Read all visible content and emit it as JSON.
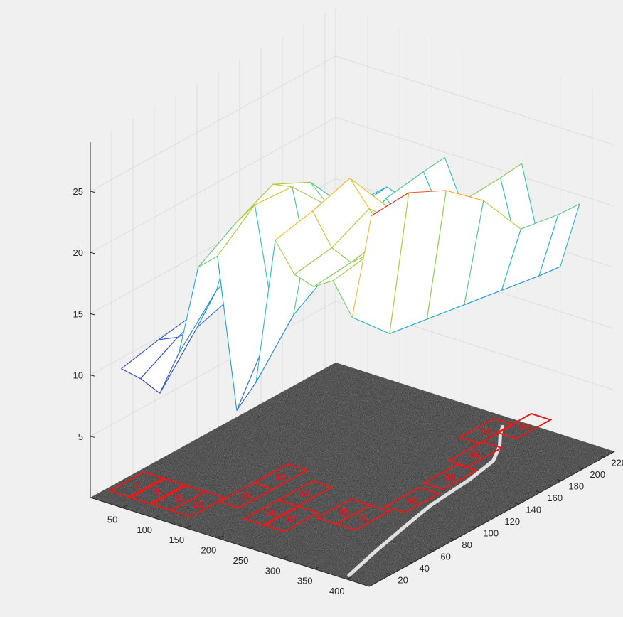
{
  "chart_data": {
    "type": "surface3d",
    "view": "3-D wireframe mesh over a grayscale texture image",
    "grid": true,
    "colormap": "parula",
    "colors": {
      "axis": "#262626",
      "grid": "#dcdcdc",
      "box": "#e81a1a",
      "background": "#f0f0f0"
    },
    "z_ticks": [
      "5",
      "10",
      "15",
      "20",
      "25"
    ],
    "x_ticks": [
      "50",
      "100",
      "150",
      "200",
      "250",
      "300",
      "350",
      "400"
    ],
    "y_ticks": [
      "20",
      "40",
      "60",
      "80",
      "100",
      "120",
      "140",
      "160",
      "180",
      "200",
      "220"
    ],
    "xlim": [
      0,
      435
    ],
    "ylim": [
      0,
      230
    ],
    "zlim": [
      0,
      29
    ],
    "mesh_x": [
      15,
      45,
      75,
      105,
      135,
      165,
      195,
      225,
      255,
      285,
      315,
      345,
      375,
      405
    ],
    "mesh_y": [
      20,
      55,
      90,
      125,
      160,
      195,
      215
    ],
    "mesh_z": [
      [
        9.8,
        9.5,
        8.8,
        12.6,
        20.1,
        21.5,
        9.4,
        12.2,
        24.3,
        22.0,
        21.5,
        22.5,
        20.0,
        28.8
      ],
      [
        10.5,
        11.2,
        12.5,
        16.0,
        22.0,
        24.0,
        15.0,
        16.0,
        25.0,
        22.5,
        21.8,
        23.0,
        17.0,
        29.0
      ],
      [
        11.0,
        12.4,
        13.5,
        17.5,
        23.5,
        23.8,
        16.8,
        18.0,
        26.0,
        24.0,
        22.4,
        23.8,
        16.5,
        27.5
      ],
      [
        11.8,
        13.0,
        14.0,
        19.0,
        22.0,
        20.5,
        17.5,
        19.0,
        22.0,
        21.0,
        21.5,
        21.0,
        16.0,
        25.0
      ],
      [
        12.2,
        12.5,
        15.0,
        17.0,
        18.2,
        17.6,
        20.0,
        18.5,
        18.0,
        17.6,
        21.8,
        17.5,
        15.5,
        21.0
      ],
      [
        12.4,
        14.0,
        15.2,
        16.6,
        16.4,
        16.0,
        20.5,
        17.2,
        16.0,
        16.3,
        22.0,
        16.0,
        15.0,
        20.5
      ],
      [
        12.6,
        14.3,
        15.5,
        16.8,
        16.2,
        15.7,
        20.7,
        17.0,
        15.7,
        16.1,
        22.2,
        15.6,
        14.8,
        20.4
      ]
    ],
    "patch_labels": [
      {
        "text": "1",
        "x": 22,
        "y": 30
      },
      {
        "text": "8",
        "x": 55,
        "y": 30
      },
      {
        "text": "15",
        "x": 88,
        "y": 30
      },
      {
        "text": "22",
        "x": 118,
        "y": 30
      },
      {
        "text": "30",
        "x": 150,
        "y": 88
      },
      {
        "text": "36",
        "x": 150,
        "y": 56
      },
      {
        "text": "44",
        "x": 205,
        "y": 78
      },
      {
        "text": "50",
        "x": 205,
        "y": 46
      },
      {
        "text": "57",
        "x": 237,
        "y": 46
      },
      {
        "text": "65",
        "x": 275,
        "y": 72
      },
      {
        "text": "72",
        "x": 305,
        "y": 72
      },
      {
        "text": "80",
        "x": 322,
        "y": 108
      },
      {
        "text": "88",
        "x": 318,
        "y": 146
      },
      {
        "text": "96",
        "x": 302,
        "y": 179
      },
      {
        "text": "90",
        "x": 272,
        "y": 208
      },
      {
        "text": "98",
        "x": 300,
        "y": 226
      }
    ]
  }
}
